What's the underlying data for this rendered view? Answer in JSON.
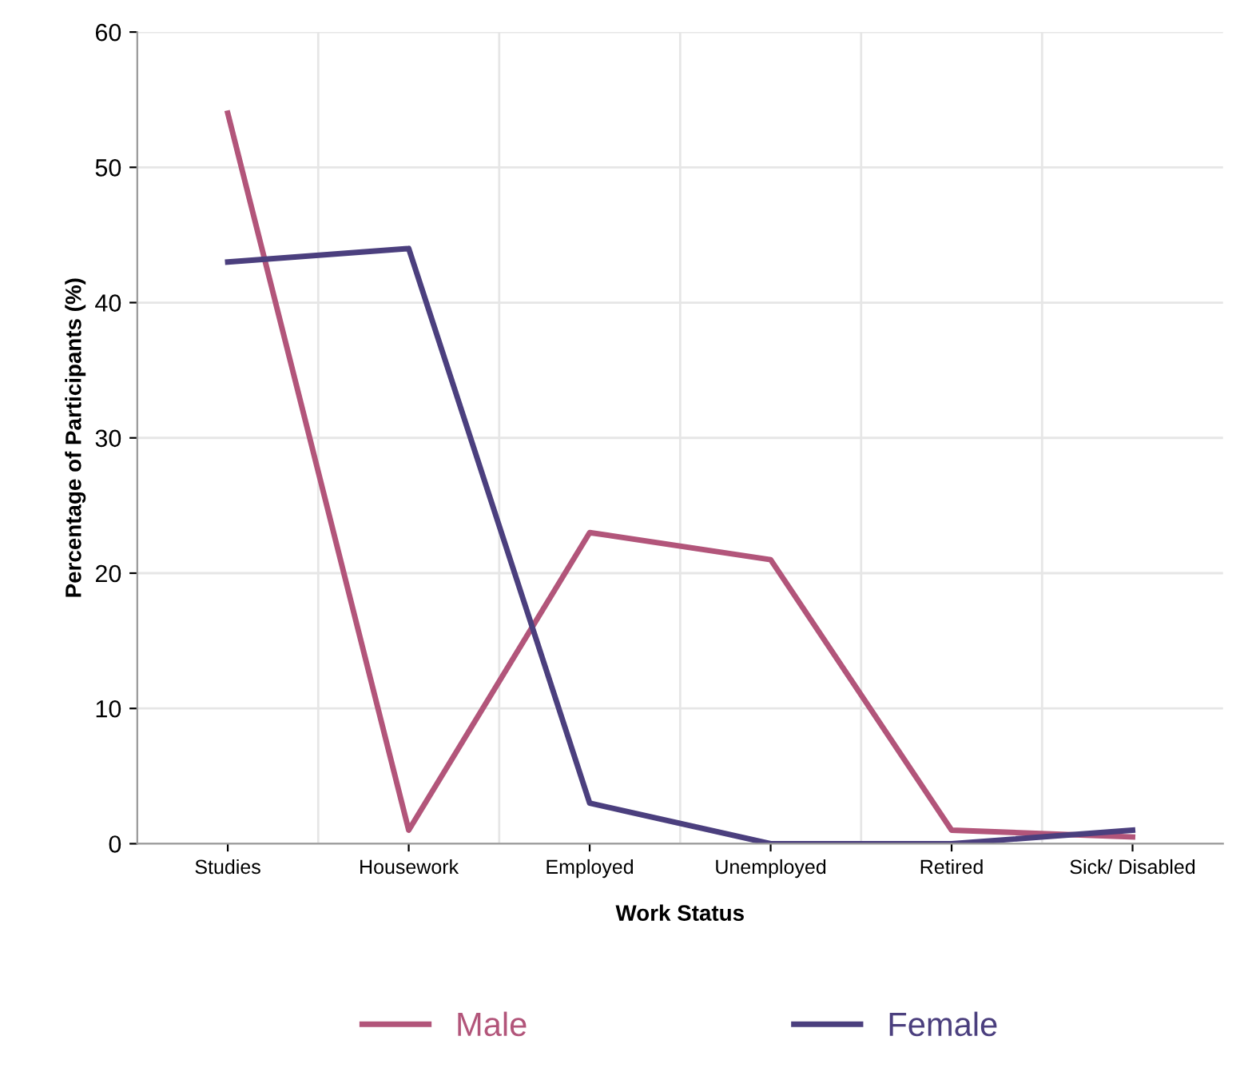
{
  "chart_data": {
    "type": "line",
    "xlabel": "Work Status",
    "ylabel": "Percentage of Participants (%)",
    "categories": [
      "Studies",
      "Housework",
      "Employed",
      "Unemployed",
      "Retired",
      "Sick/ Disabled"
    ],
    "series": [
      {
        "name": "Male",
        "color": "#b2557a",
        "values": [
          54,
          1,
          23,
          21,
          1,
          0.5
        ]
      },
      {
        "name": "Female",
        "color": "#4b3f7e",
        "values": [
          43,
          44,
          3,
          0,
          0,
          1
        ]
      }
    ],
    "ylim": [
      0,
      60
    ],
    "yticks": [
      0,
      10,
      20,
      30,
      40,
      50,
      60
    ],
    "grid": true,
    "legend": "bottom",
    "marker": "none",
    "line_style": "solid"
  }
}
